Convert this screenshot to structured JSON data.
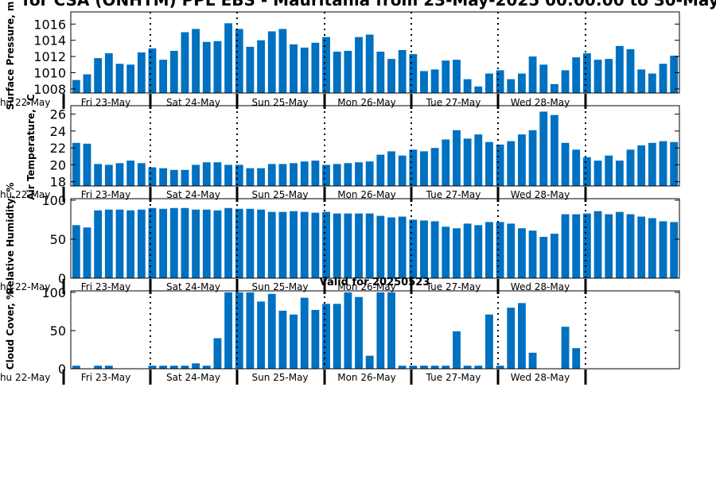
{
  "title": "for CSA (ONHTM) PPL EBS  - Mauritania from 23-May-2025 00:00:00 to 30-May",
  "valid_label": "Valid for 20250523",
  "bar_color": "#0070c0",
  "day_labels": [
    "Thu 22-May",
    "Fri 23-May",
    "Sat 24-May",
    "Sun 25-May",
    "Mon 26-May",
    "Tue 27-May",
    "Wed 28-May"
  ],
  "chart_data": [
    {
      "type": "bar",
      "ylabel": "Surface Pressure, m",
      "ylim": [
        1007.5,
        1017.5
      ],
      "yticks": [
        1008,
        1010,
        1012,
        1014,
        1016
      ],
      "values": [
        1009.1,
        1009.8,
        1011.8,
        1012.4,
        1011.1,
        1011.0,
        1012.5,
        1013.0,
        1011.6,
        1012.7,
        1015.0,
        1015.4,
        1013.8,
        1013.9,
        1016.1,
        1015.4,
        1013.2,
        1014.0,
        1015.1,
        1015.4,
        1013.5,
        1013.1,
        1013.7,
        1014.4,
        1012.6,
        1012.7,
        1014.4,
        1014.7,
        1012.6,
        1011.7,
        1012.8,
        1012.3,
        1010.2,
        1010.4,
        1011.5,
        1011.6,
        1009.2,
        1008.3,
        1009.9,
        1010.3,
        1009.2,
        1009.9,
        1012.0,
        1011.0,
        1008.6,
        1010.3,
        1011.9,
        1012.4,
        1011.6,
        1011.7,
        1013.3,
        1012.9,
        1010.4,
        1009.9,
        1011.1,
        1012.1
      ]
    },
    {
      "type": "bar",
      "ylabel": "Air Temperature, °C",
      "ylim": [
        17.5,
        27
      ],
      "yticks": [
        18,
        20,
        22,
        24,
        26
      ],
      "values": [
        22.6,
        22.5,
        20.1,
        20.0,
        20.2,
        20.5,
        20.2,
        19.7,
        19.6,
        19.4,
        19.4,
        20.0,
        20.3,
        20.3,
        20.0,
        20.0,
        19.6,
        19.6,
        20.1,
        20.1,
        20.2,
        20.4,
        20.5,
        20.0,
        20.1,
        20.2,
        20.3,
        20.4,
        21.2,
        21.6,
        21.1,
        21.8,
        21.6,
        22.0,
        23.0,
        24.1,
        23.1,
        23.6,
        22.7,
        22.4,
        22.8,
        23.6,
        24.1,
        26.3,
        25.9,
        22.6,
        21.8,
        20.9,
        20.5,
        21.1,
        20.5,
        21.8,
        22.3,
        22.6,
        22.8,
        22.7
      ]
    },
    {
      "type": "bar",
      "ylabel": "Relative Humidity, %",
      "ylim": [
        0,
        102
      ],
      "yticks": [
        0,
        50,
        100
      ],
      "values": [
        68,
        65,
        87,
        88,
        88,
        87,
        88,
        90,
        89,
        90,
        90,
        88,
        88,
        87,
        90,
        89,
        89,
        88,
        85,
        85,
        86,
        85,
        84,
        85,
        83,
        83,
        83,
        83,
        80,
        78,
        79,
        75,
        74,
        73,
        66,
        64,
        70,
        68,
        72,
        72,
        70,
        64,
        61,
        53,
        57,
        82,
        82,
        83,
        86,
        82,
        85,
        82,
        79,
        77,
        73,
        72
      ]
    },
    {
      "type": "bar",
      "ylabel": "Cloud Cover, %",
      "ylim": [
        0,
        102
      ],
      "yticks": [
        0,
        50,
        100
      ],
      "values": [
        4,
        0,
        4,
        4,
        0,
        0,
        0,
        4,
        4,
        4,
        4,
        7,
        4,
        40,
        100,
        100,
        100,
        88,
        98,
        76,
        71,
        93,
        77,
        85,
        85,
        100,
        94,
        17,
        100,
        100,
        4,
        4,
        4,
        4,
        4,
        49,
        4,
        4,
        71,
        4,
        80,
        86,
        21,
        0,
        0,
        55,
        27,
        0,
        0,
        0,
        0,
        0,
        0,
        0,
        0,
        0
      ]
    }
  ]
}
